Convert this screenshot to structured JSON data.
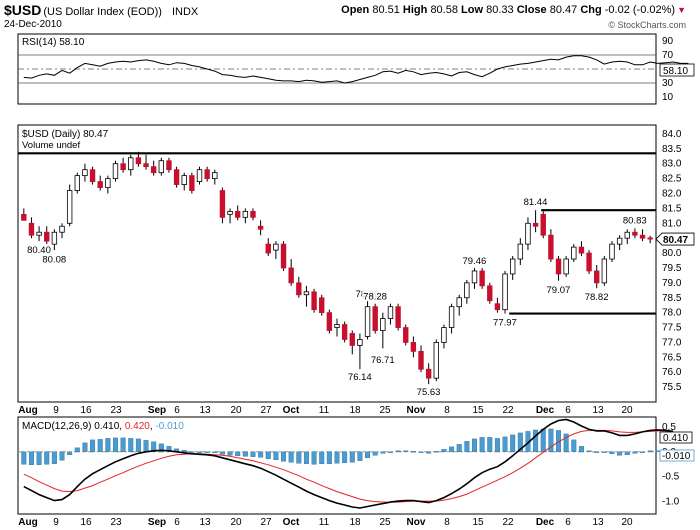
{
  "header": {
    "symbol": "$USD",
    "name": "(US Dollar Index (EOD))",
    "exchange": "INDX",
    "date": "24-Dec-2010",
    "open_label": "Open",
    "open": "80.51",
    "high_label": "High",
    "high": "80.58",
    "low_label": "Low",
    "low": "80.33",
    "close_label": "Close",
    "close": "80.47",
    "chg_label": "Chg",
    "chg": "-0.02 (-0.02%)",
    "credit": "© StockCharts.com"
  },
  "colors": {
    "up": "#ffffff",
    "down": "#c8102e",
    "wick": "#000000",
    "rsi_fill": "#a07e78",
    "macd_hist": "#4b9bd0",
    "macd_signal": "#e32424"
  },
  "chart_data": [
    {
      "type": "line",
      "title": "RSI(14) 58.10",
      "panel": "rsi",
      "ylim": [
        0,
        100
      ],
      "y_ticks": [
        90,
        70,
        50,
        30,
        10
      ],
      "reference_lines": [
        70,
        50,
        30
      ],
      "last_value_label": "58.10",
      "values": [
        38,
        37,
        41,
        43,
        41,
        48,
        44,
        52,
        58,
        56,
        54,
        58,
        60,
        61,
        60,
        62,
        63,
        61,
        58,
        56,
        59,
        58,
        55,
        53,
        50,
        47,
        42,
        41,
        39,
        38,
        40,
        38,
        36,
        34,
        33,
        33,
        32,
        34,
        33,
        31,
        32,
        33,
        30,
        32,
        35,
        38,
        41,
        46,
        47,
        44,
        48,
        46,
        42,
        44,
        45,
        43,
        40,
        45,
        46,
        42,
        39,
        44,
        50,
        53,
        55,
        57,
        58,
        60,
        62,
        64,
        63,
        67,
        69,
        69,
        67,
        63,
        57,
        60,
        61,
        60,
        56,
        56,
        60,
        58,
        59,
        60,
        58,
        58
      ]
    },
    {
      "type": "candlestick",
      "title": "$USD (Daily) 80.47",
      "subtitle": "Volume undef",
      "panel": "price",
      "ylim": [
        75.0,
        84.3
      ],
      "y_ticks": [
        "84.0",
        "83.5",
        "83.0",
        "82.5",
        "82.0",
        "81.5",
        "81.0",
        "80.5",
        "80.0",
        "79.5",
        "79.0",
        "78.5",
        "78.0",
        "77.5",
        "77.0",
        "76.5",
        "76.0",
        "75.5"
      ],
      "last_value_label": "80.47",
      "x_ticks": [
        "Aug",
        "9",
        "16",
        "23",
        "Sep",
        "6",
        "13",
        "20",
        "27",
        "Oct",
        "11",
        "18",
        "25",
        "Nov",
        "8",
        "15",
        "22",
        "Dec",
        "6",
        "13",
        "20"
      ],
      "horizontal_lines": [
        {
          "y": 83.35,
          "from": 0,
          "to": 1
        },
        {
          "y": 81.44,
          "from": 0.82,
          "to": 1
        },
        {
          "y": 77.97,
          "from": 0.77,
          "to": 1
        }
      ],
      "annotations": [
        {
          "label": "80.08",
          "y": 80.08
        },
        {
          "label": "76.14",
          "y": 76.14
        },
        {
          "label": "78.36",
          "y": 78.36
        },
        {
          "label": "78.28",
          "y": 78.28
        },
        {
          "label": "76.71",
          "y": 76.71
        },
        {
          "label": "75.63",
          "y": 75.63
        },
        {
          "label": "79.46",
          "y": 79.46
        },
        {
          "label": "77.97",
          "y": 77.97
        },
        {
          "label": "81.44",
          "y": 81.44
        },
        {
          "label": "80.40",
          "y": 80.4
        },
        {
          "label": "79.07",
          "y": 79.07
        },
        {
          "label": "78.82",
          "y": 78.82
        },
        {
          "label": "80.83",
          "y": 80.83
        }
      ],
      "candles": [
        {
          "o": 81.3,
          "h": 81.5,
          "l": 81.1,
          "c": 81.1
        },
        {
          "o": 81.0,
          "h": 81.2,
          "l": 80.5,
          "c": 80.6
        },
        {
          "o": 80.6,
          "h": 80.9,
          "l": 80.4,
          "c": 80.7
        },
        {
          "o": 80.7,
          "h": 80.9,
          "l": 80.3,
          "c": 80.4
        },
        {
          "o": 80.3,
          "h": 80.8,
          "l": 80.1,
          "c": 80.7
        },
        {
          "o": 80.7,
          "h": 81.0,
          "l": 80.5,
          "c": 80.9
        },
        {
          "o": 81.0,
          "h": 82.3,
          "l": 80.9,
          "c": 82.1
        },
        {
          "o": 82.1,
          "h": 82.7,
          "l": 82.0,
          "c": 82.6
        },
        {
          "o": 82.6,
          "h": 83.0,
          "l": 82.4,
          "c": 82.8
        },
        {
          "o": 82.8,
          "h": 82.9,
          "l": 82.3,
          "c": 82.4
        },
        {
          "o": 82.4,
          "h": 82.6,
          "l": 82.1,
          "c": 82.2
        },
        {
          "o": 82.2,
          "h": 82.6,
          "l": 82.0,
          "c": 82.5
        },
        {
          "o": 82.5,
          "h": 83.1,
          "l": 82.4,
          "c": 83.0
        },
        {
          "o": 83.0,
          "h": 83.2,
          "l": 82.7,
          "c": 82.8
        },
        {
          "o": 82.8,
          "h": 83.3,
          "l": 82.6,
          "c": 83.2
        },
        {
          "o": 83.2,
          "h": 83.4,
          "l": 82.9,
          "c": 83.0
        },
        {
          "o": 83.0,
          "h": 83.3,
          "l": 82.8,
          "c": 82.9
        },
        {
          "o": 82.9,
          "h": 83.1,
          "l": 82.6,
          "c": 82.7
        },
        {
          "o": 82.7,
          "h": 83.2,
          "l": 82.6,
          "c": 83.1
        },
        {
          "o": 83.1,
          "h": 83.2,
          "l": 82.7,
          "c": 82.8
        },
        {
          "o": 82.8,
          "h": 82.9,
          "l": 82.2,
          "c": 82.3
        },
        {
          "o": 82.3,
          "h": 82.7,
          "l": 82.1,
          "c": 82.6
        },
        {
          "o": 82.6,
          "h": 82.7,
          "l": 82.0,
          "c": 82.1
        },
        {
          "o": 82.4,
          "h": 82.9,
          "l": 82.3,
          "c": 82.8
        },
        {
          "o": 82.8,
          "h": 82.9,
          "l": 82.4,
          "c": 82.5
        },
        {
          "o": 82.5,
          "h": 82.8,
          "l": 82.3,
          "c": 82.7
        },
        {
          "o": 82.1,
          "h": 82.2,
          "l": 81.0,
          "c": 81.2
        },
        {
          "o": 81.3,
          "h": 81.5,
          "l": 81.0,
          "c": 81.4
        },
        {
          "o": 81.4,
          "h": 81.6,
          "l": 81.1,
          "c": 81.2
        },
        {
          "o": 81.2,
          "h": 81.5,
          "l": 81.0,
          "c": 81.4
        },
        {
          "o": 81.4,
          "h": 81.5,
          "l": 81.1,
          "c": 81.2
        },
        {
          "o": 80.9,
          "h": 81.1,
          "l": 80.6,
          "c": 80.8
        },
        {
          "o": 80.3,
          "h": 80.5,
          "l": 79.9,
          "c": 80.0
        },
        {
          "o": 80.1,
          "h": 80.4,
          "l": 79.8,
          "c": 80.3
        },
        {
          "o": 80.3,
          "h": 80.4,
          "l": 79.4,
          "c": 79.5
        },
        {
          "o": 79.5,
          "h": 79.8,
          "l": 78.9,
          "c": 79.0
        },
        {
          "o": 79.0,
          "h": 79.2,
          "l": 78.5,
          "c": 78.6
        },
        {
          "o": 78.6,
          "h": 78.9,
          "l": 78.2,
          "c": 78.7
        },
        {
          "o": 78.7,
          "h": 78.8,
          "l": 78.0,
          "c": 78.1
        },
        {
          "o": 78.5,
          "h": 78.6,
          "l": 77.9,
          "c": 78.0
        },
        {
          "o": 78.0,
          "h": 78.1,
          "l": 77.3,
          "c": 77.4
        },
        {
          "o": 77.5,
          "h": 77.8,
          "l": 77.2,
          "c": 77.6
        },
        {
          "o": 77.6,
          "h": 77.7,
          "l": 77.0,
          "c": 77.1
        },
        {
          "o": 77.3,
          "h": 77.4,
          "l": 76.6,
          "c": 76.9
        },
        {
          "o": 76.9,
          "h": 77.3,
          "l": 76.1,
          "c": 77.1
        },
        {
          "o": 77.2,
          "h": 78.4,
          "l": 77.1,
          "c": 78.2
        },
        {
          "o": 78.2,
          "h": 78.3,
          "l": 77.3,
          "c": 77.4
        },
        {
          "o": 77.4,
          "h": 78.0,
          "l": 76.8,
          "c": 77.8
        },
        {
          "o": 77.8,
          "h": 78.3,
          "l": 77.6,
          "c": 78.2
        },
        {
          "o": 78.2,
          "h": 78.3,
          "l": 77.4,
          "c": 77.5
        },
        {
          "o": 77.5,
          "h": 77.6,
          "l": 76.9,
          "c": 77.0
        },
        {
          "o": 77.0,
          "h": 77.2,
          "l": 76.5,
          "c": 76.7
        },
        {
          "o": 76.7,
          "h": 76.9,
          "l": 76.0,
          "c": 76.1
        },
        {
          "o": 76.1,
          "h": 76.3,
          "l": 75.6,
          "c": 75.8
        },
        {
          "o": 75.8,
          "h": 77.1,
          "l": 75.7,
          "c": 77.0
        },
        {
          "o": 77.0,
          "h": 77.6,
          "l": 76.8,
          "c": 77.5
        },
        {
          "o": 77.5,
          "h": 78.3,
          "l": 77.3,
          "c": 78.2
        },
        {
          "o": 78.2,
          "h": 78.6,
          "l": 77.9,
          "c": 78.5
        },
        {
          "o": 78.5,
          "h": 79.1,
          "l": 78.3,
          "c": 79.0
        },
        {
          "o": 79.0,
          "h": 79.5,
          "l": 78.8,
          "c": 79.4
        },
        {
          "o": 79.4,
          "h": 79.5,
          "l": 78.8,
          "c": 78.9
        },
        {
          "o": 78.9,
          "h": 79.0,
          "l": 78.3,
          "c": 78.4
        },
        {
          "o": 78.3,
          "h": 78.5,
          "l": 78.0,
          "c": 78.1
        },
        {
          "o": 78.1,
          "h": 79.4,
          "l": 77.97,
          "c": 79.3
        },
        {
          "o": 79.3,
          "h": 79.9,
          "l": 79.1,
          "c": 79.8
        },
        {
          "o": 79.8,
          "h": 80.5,
          "l": 79.6,
          "c": 80.3
        },
        {
          "o": 80.3,
          "h": 81.2,
          "l": 80.1,
          "c": 81.0
        },
        {
          "o": 81.0,
          "h": 81.44,
          "l": 80.7,
          "c": 80.9
        },
        {
          "o": 81.3,
          "h": 81.4,
          "l": 80.5,
          "c": 80.6
        },
        {
          "o": 80.6,
          "h": 80.8,
          "l": 79.7,
          "c": 79.8
        },
        {
          "o": 79.8,
          "h": 79.9,
          "l": 79.07,
          "c": 79.3
        },
        {
          "o": 79.3,
          "h": 79.9,
          "l": 79.2,
          "c": 79.8
        },
        {
          "o": 79.8,
          "h": 80.3,
          "l": 79.7,
          "c": 80.2
        },
        {
          "o": 80.2,
          "h": 80.4,
          "l": 79.9,
          "c": 80.0
        },
        {
          "o": 80.0,
          "h": 80.1,
          "l": 79.3,
          "c": 79.4
        },
        {
          "o": 79.4,
          "h": 79.6,
          "l": 78.82,
          "c": 79.0
        },
        {
          "o": 79.0,
          "h": 79.9,
          "l": 78.9,
          "c": 79.8
        },
        {
          "o": 79.8,
          "h": 80.4,
          "l": 79.7,
          "c": 80.3
        },
        {
          "o": 80.3,
          "h": 80.6,
          "l": 80.1,
          "c": 80.5
        },
        {
          "o": 80.5,
          "h": 80.8,
          "l": 80.3,
          "c": 80.7
        },
        {
          "o": 80.7,
          "h": 80.83,
          "l": 80.5,
          "c": 80.6
        },
        {
          "o": 80.6,
          "h": 80.8,
          "l": 80.4,
          "c": 80.5
        },
        {
          "o": 80.51,
          "h": 80.58,
          "l": 80.33,
          "c": 80.47
        }
      ]
    },
    {
      "type": "bar",
      "title": "MACD(12,26,9)",
      "panel": "macd",
      "legend": [
        {
          "label": "MACD(12,26,9)",
          "value": "0.410",
          "color": "#000000"
        },
        {
          "label": "",
          "value": "0.420",
          "color": "#e32424"
        },
        {
          "label": "",
          "value": "-0.010",
          "color": "#4b9bd0"
        }
      ],
      "ylim": [
        -1.25,
        0.7
      ],
      "y_ticks": [
        "0.5",
        "0.0",
        "-0.5",
        "-1.0"
      ],
      "last_value_labels": [
        "0.410",
        "-0.010"
      ],
      "x_ticks": [
        "Aug",
        "9",
        "16",
        "23",
        "Sep",
        "6",
        "13",
        "20",
        "27",
        "Oct",
        "11",
        "18",
        "25",
        "Nov",
        "8",
        "15",
        "22",
        "Dec",
        "6",
        "13",
        "20"
      ],
      "macd": [
        -0.7,
        -0.78,
        -0.86,
        -0.92,
        -0.98,
        -0.96,
        -0.86,
        -0.7,
        -0.55,
        -0.44,
        -0.36,
        -0.28,
        -0.2,
        -0.14,
        -0.08,
        -0.03,
        0.0,
        0.02,
        0.03,
        0.02,
        0.0,
        -0.02,
        -0.04,
        -0.05,
        -0.06,
        -0.08,
        -0.12,
        -0.16,
        -0.2,
        -0.24,
        -0.28,
        -0.33,
        -0.4,
        -0.47,
        -0.55,
        -0.63,
        -0.71,
        -0.79,
        -0.86,
        -0.92,
        -0.98,
        -1.03,
        -1.07,
        -1.11,
        -1.13,
        -1.1,
        -1.07,
        -1.04,
        -1.01,
        -0.99,
        -0.98,
        -0.98,
        -1.0,
        -1.02,
        -0.98,
        -0.92,
        -0.84,
        -0.75,
        -0.64,
        -0.52,
        -0.42,
        -0.35,
        -0.3,
        -0.2,
        -0.08,
        0.05,
        0.18,
        0.32,
        0.45,
        0.56,
        0.63,
        0.65,
        0.6,
        0.52,
        0.45,
        0.42,
        0.42,
        0.38,
        0.33,
        0.33,
        0.36,
        0.4,
        0.43,
        0.44,
        0.43,
        0.41
      ],
      "signal": [
        -0.45,
        -0.52,
        -0.6,
        -0.67,
        -0.74,
        -0.79,
        -0.8,
        -0.78,
        -0.73,
        -0.68,
        -0.61,
        -0.55,
        -0.48,
        -0.42,
        -0.35,
        -0.29,
        -0.23,
        -0.18,
        -0.13,
        -0.09,
        -0.06,
        -0.05,
        -0.04,
        -0.04,
        -0.05,
        -0.06,
        -0.07,
        -0.09,
        -0.12,
        -0.15,
        -0.18,
        -0.22,
        -0.26,
        -0.31,
        -0.36,
        -0.42,
        -0.48,
        -0.55,
        -0.61,
        -0.68,
        -0.74,
        -0.8,
        -0.85,
        -0.9,
        -0.95,
        -0.98,
        -1.0,
        -1.01,
        -1.01,
        -1.01,
        -1.0,
        -0.99,
        -0.99,
        -0.99,
        -0.99,
        -0.97,
        -0.94,
        -0.9,
        -0.85,
        -0.78,
        -0.71,
        -0.64,
        -0.57,
        -0.5,
        -0.42,
        -0.33,
        -0.23,
        -0.12,
        -0.01,
        0.1,
        0.2,
        0.29,
        0.36,
        0.41,
        0.43,
        0.43,
        0.43,
        0.42,
        0.4,
        0.39,
        0.39,
        0.4,
        0.41,
        0.42,
        0.42,
        0.42
      ],
      "histogram": [
        -0.25,
        -0.26,
        -0.26,
        -0.25,
        -0.24,
        -0.17,
        -0.06,
        0.08,
        0.18,
        0.24,
        0.25,
        0.27,
        0.28,
        0.28,
        0.27,
        0.26,
        0.23,
        0.2,
        0.16,
        0.11,
        0.06,
        0.03,
        0.0,
        -0.01,
        -0.01,
        -0.02,
        -0.05,
        -0.07,
        -0.08,
        -0.09,
        -0.1,
        -0.11,
        -0.14,
        -0.16,
        -0.19,
        -0.21,
        -0.23,
        -0.24,
        -0.25,
        -0.24,
        -0.24,
        -0.23,
        -0.22,
        -0.21,
        -0.18,
        -0.12,
        -0.07,
        -0.03,
        0.0,
        0.02,
        0.02,
        0.01,
        -0.01,
        -0.03,
        0.01,
        0.05,
        0.1,
        0.15,
        0.21,
        0.26,
        0.29,
        0.29,
        0.27,
        0.3,
        0.34,
        0.38,
        0.41,
        0.44,
        0.46,
        0.46,
        0.43,
        0.36,
        0.24,
        0.11,
        0.02,
        -0.01,
        -0.01,
        -0.04,
        -0.07,
        -0.06,
        -0.03,
        0.0,
        0.02,
        0.02,
        0.01,
        -0.01
      ]
    }
  ]
}
